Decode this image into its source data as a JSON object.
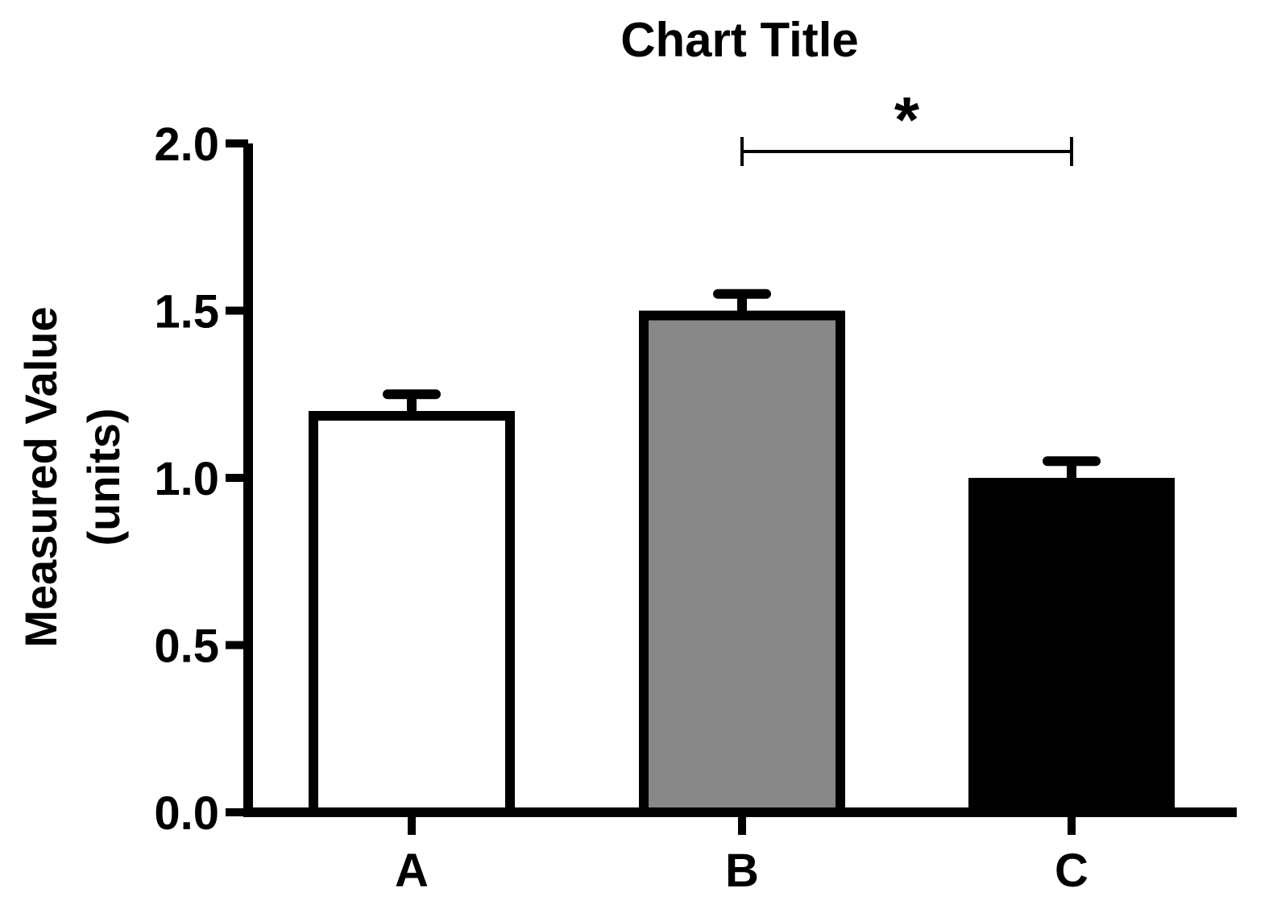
{
  "chart_data": {
    "type": "bar",
    "title": "Chart Title",
    "xlabel": "",
    "ylabel_line1": "Measured Value",
    "ylabel_line2": "(units)",
    "categories": [
      "A",
      "B",
      "C"
    ],
    "values": [
      1.2,
      1.5,
      1.0
    ],
    "errors": [
      0.05,
      0.05,
      0.05
    ],
    "fill_colors": [
      "#ffffff",
      "#888888",
      "#000000"
    ],
    "ylim": [
      0,
      2.0
    ],
    "yticks": [
      0.0,
      0.5,
      1.0,
      1.5,
      2.0
    ],
    "ytick_labels": [
      "0.0",
      "0.5",
      "1.0",
      "1.5",
      "2.0"
    ],
    "significance": {
      "from_index": 1,
      "to_index": 2,
      "label": "*"
    },
    "grid": false,
    "legend": "none"
  }
}
